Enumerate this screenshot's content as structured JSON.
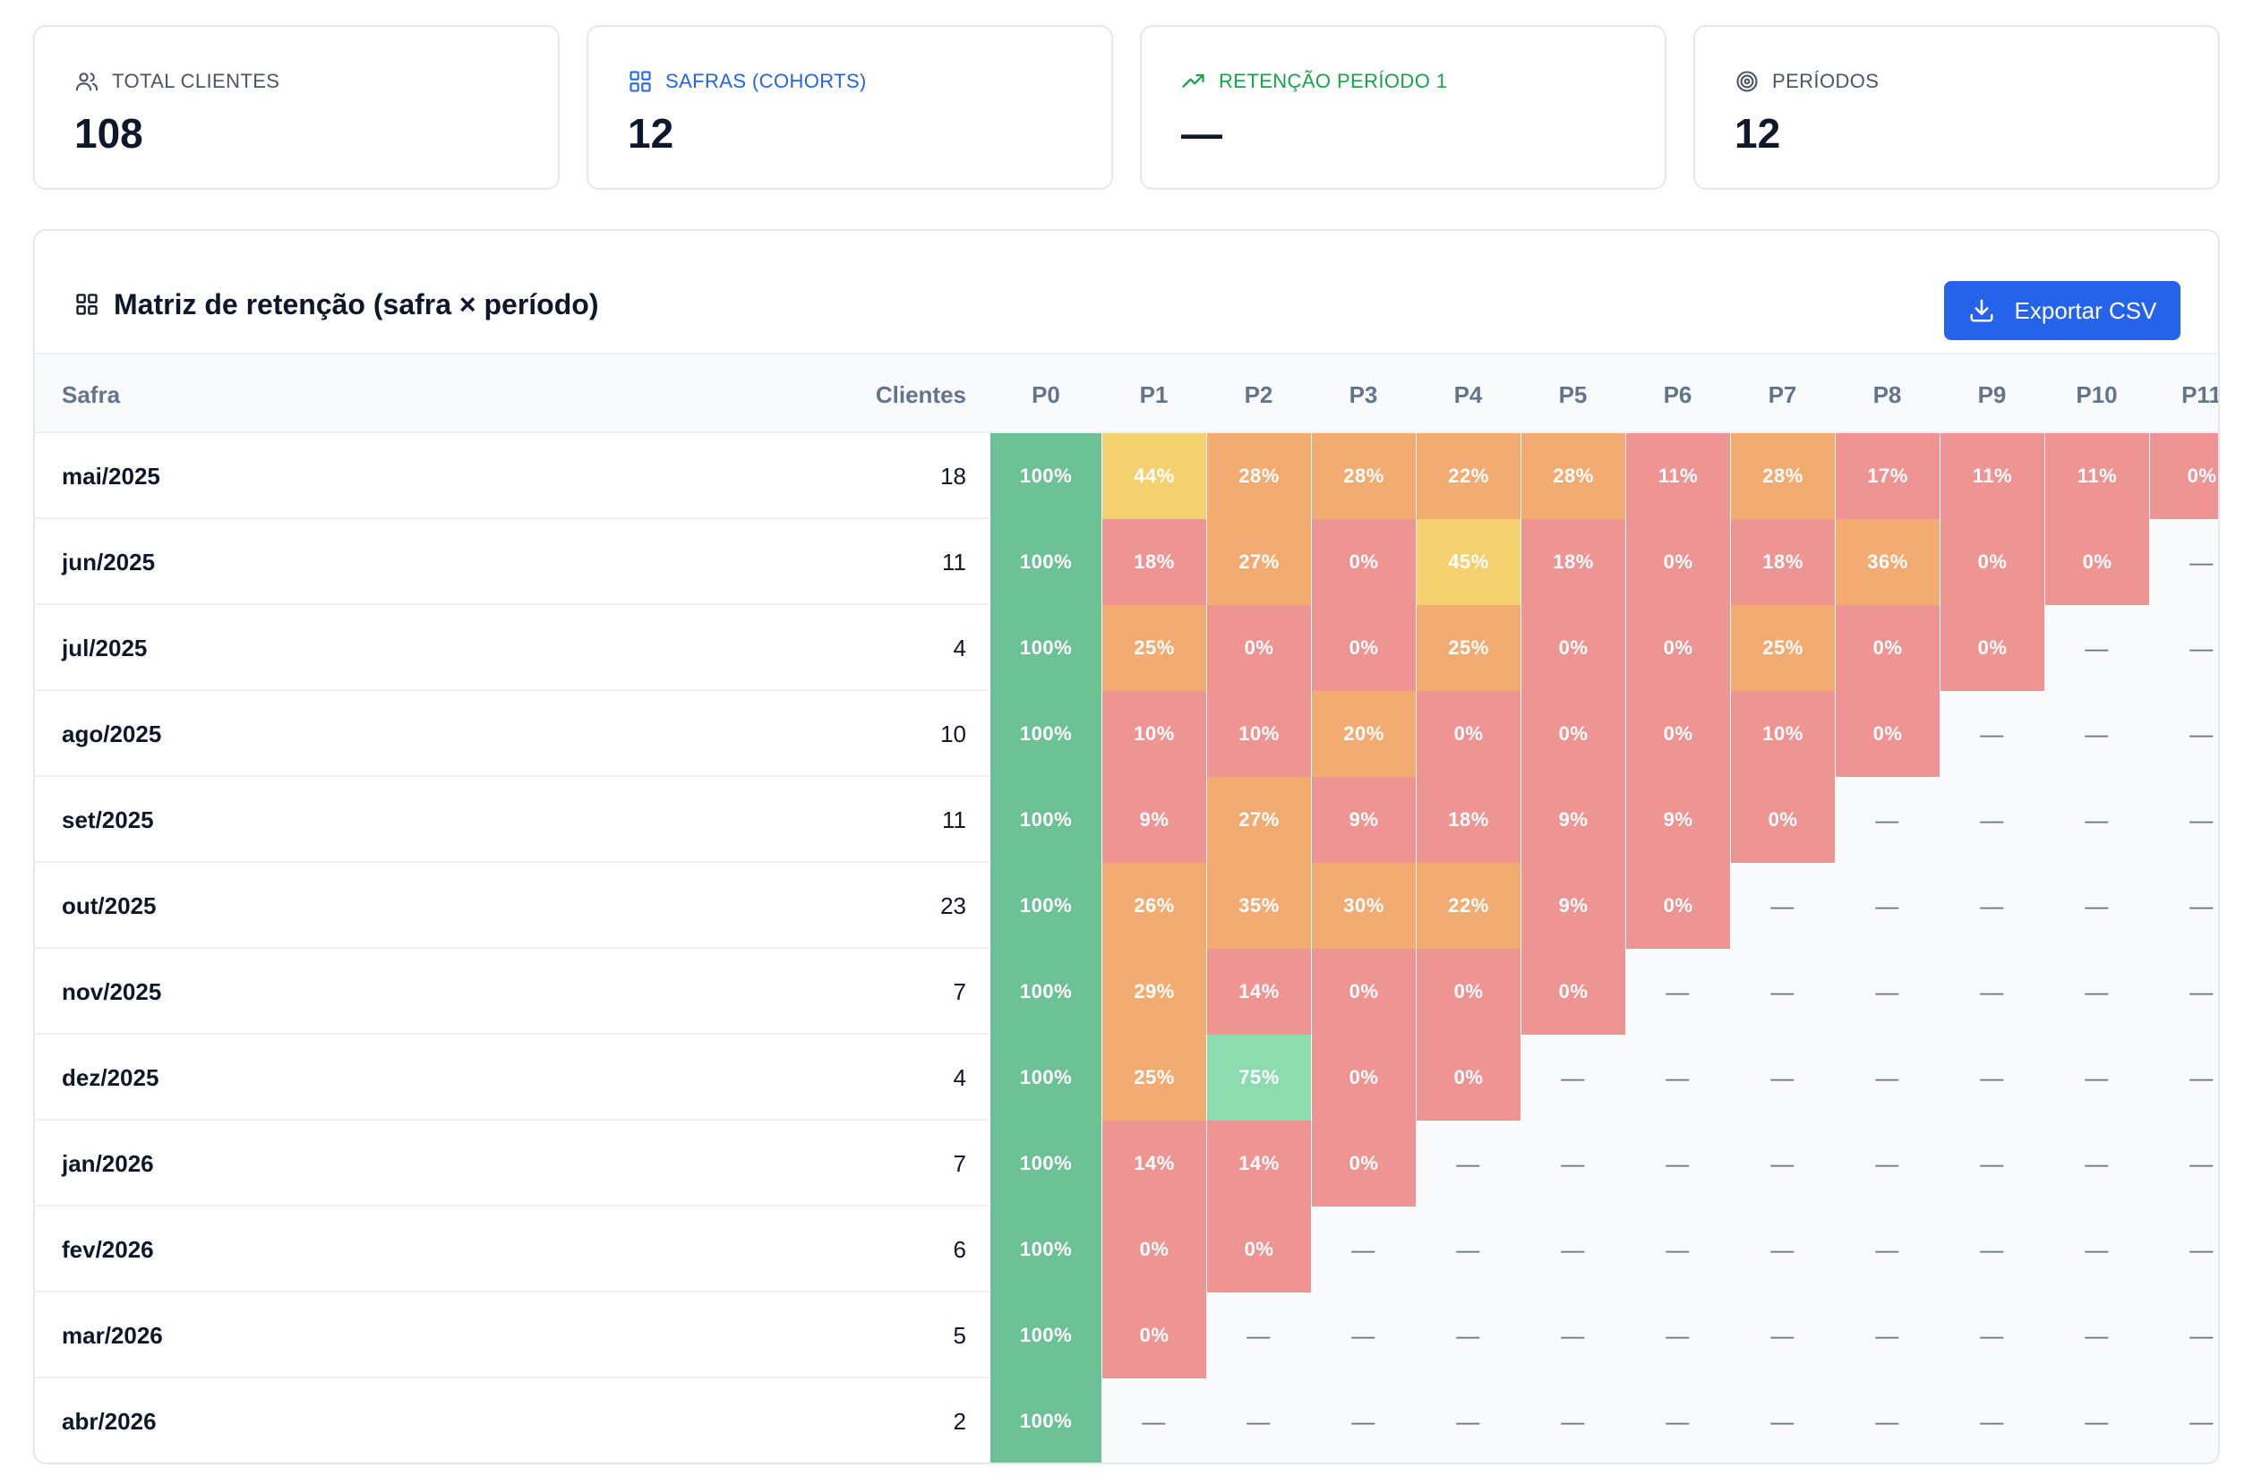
{
  "colors": {
    "accent": "#2563eb",
    "green": "#6cc295",
    "light_green": "#8ddcb0",
    "yellow": "#f4d06f",
    "orange": "#f2ac72",
    "red": "#ee9493",
    "muted": "#64748b",
    "stat_users": "#4b5563",
    "stat_safras": "#2563eb",
    "stat_retention": "#16a34a",
    "stat_periods": "#4b5563"
  },
  "stats": [
    {
      "label": "TOTAL CLIENTES",
      "value": "108",
      "icon": "users-icon"
    },
    {
      "label": "SAFRAS (COHORTS)",
      "value": "12",
      "icon": "grid-icon"
    },
    {
      "label": "RETENÇÃO PERÍODO 1",
      "value": "—",
      "icon": "trend-up-icon"
    },
    {
      "label": "PERÍODOS",
      "value": "12",
      "icon": "target-icon"
    }
  ],
  "panel": {
    "title": "Matriz de retenção (safra × período)",
    "export_label": "Exportar CSV"
  },
  "table": {
    "headers": {
      "safra": "Safra",
      "clientes": "Clientes",
      "periods": [
        "P0",
        "P1",
        "P2",
        "P3",
        "P4",
        "P5",
        "P6",
        "P7",
        "P8",
        "P9",
        "P10",
        "P11"
      ]
    },
    "rows": [
      {
        "safra": "mai/2025",
        "clientes": "18",
        "values": [
          "100%",
          "44%",
          "28%",
          "28%",
          "22%",
          "28%",
          "11%",
          "28%",
          "17%",
          "11%",
          "11%",
          "0%"
        ]
      },
      {
        "safra": "jun/2025",
        "clientes": "11",
        "values": [
          "100%",
          "18%",
          "27%",
          "0%",
          "45%",
          "18%",
          "0%",
          "18%",
          "36%",
          "0%",
          "0%",
          "—"
        ]
      },
      {
        "safra": "jul/2025",
        "clientes": "4",
        "values": [
          "100%",
          "25%",
          "0%",
          "0%",
          "25%",
          "0%",
          "0%",
          "25%",
          "0%",
          "0%",
          "—",
          "—"
        ]
      },
      {
        "safra": "ago/2025",
        "clientes": "10",
        "values": [
          "100%",
          "10%",
          "10%",
          "20%",
          "0%",
          "0%",
          "0%",
          "10%",
          "0%",
          "—",
          "—",
          "—"
        ]
      },
      {
        "safra": "set/2025",
        "clientes": "11",
        "values": [
          "100%",
          "9%",
          "27%",
          "9%",
          "18%",
          "9%",
          "9%",
          "0%",
          "—",
          "—",
          "—",
          "—"
        ]
      },
      {
        "safra": "out/2025",
        "clientes": "23",
        "values": [
          "100%",
          "26%",
          "35%",
          "30%",
          "22%",
          "9%",
          "0%",
          "—",
          "—",
          "—",
          "—",
          "—"
        ]
      },
      {
        "safra": "nov/2025",
        "clientes": "7",
        "values": [
          "100%",
          "29%",
          "14%",
          "0%",
          "0%",
          "0%",
          "—",
          "—",
          "—",
          "—",
          "—",
          "—"
        ]
      },
      {
        "safra": "dez/2025",
        "clientes": "4",
        "values": [
          "100%",
          "25%",
          "75%",
          "0%",
          "0%",
          "—",
          "—",
          "—",
          "—",
          "—",
          "—",
          "—"
        ]
      },
      {
        "safra": "jan/2026",
        "clientes": "7",
        "values": [
          "100%",
          "14%",
          "14%",
          "0%",
          "—",
          "—",
          "—",
          "—",
          "—",
          "—",
          "—",
          "—"
        ]
      },
      {
        "safra": "fev/2026",
        "clientes": "6",
        "values": [
          "100%",
          "0%",
          "0%",
          "—",
          "—",
          "—",
          "—",
          "—",
          "—",
          "—",
          "—",
          "—"
        ]
      },
      {
        "safra": "mar/2026",
        "clientes": "5",
        "values": [
          "100%",
          "0%",
          "—",
          "—",
          "—",
          "—",
          "—",
          "—",
          "—",
          "—",
          "—",
          "—"
        ]
      },
      {
        "safra": "abr/2026",
        "clientes": "2",
        "values": [
          "100%",
          "—",
          "—",
          "—",
          "—",
          "—",
          "—",
          "—",
          "—",
          "—",
          "—",
          "—"
        ]
      }
    ]
  }
}
